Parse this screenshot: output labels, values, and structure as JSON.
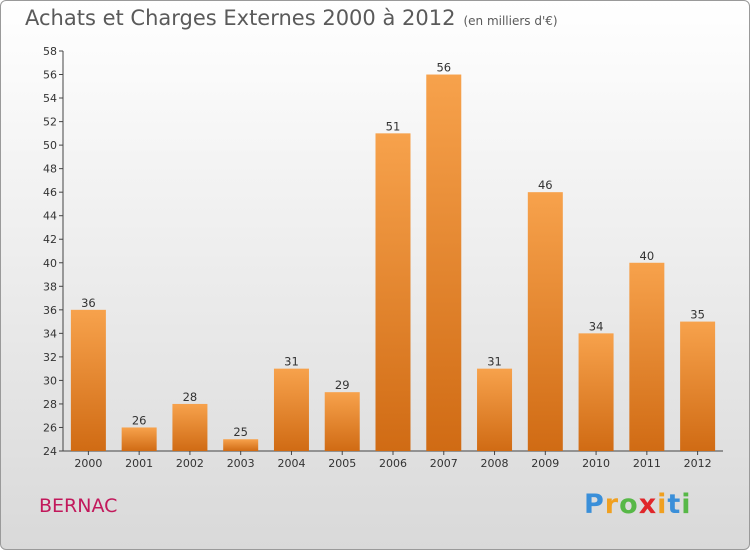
{
  "header": {
    "title": "Achats et Charges Externes 2000 à 2012",
    "unit": "(en milliers d'€)"
  },
  "footer": {
    "commune": "BERNAC",
    "logo_letters": [
      "P",
      "r",
      "o",
      "x",
      "i",
      "t",
      "i"
    ],
    "logo_colors": [
      "#3a8fd9",
      "#f0a020",
      "#57b847",
      "#e0262a",
      "#f0a020",
      "#3a8fd9",
      "#57b847"
    ]
  },
  "colors": {
    "bar_top": "#f7a24c",
    "bar_bottom": "#d06b14",
    "axis": "#444444",
    "grid": "#d0d0d0"
  },
  "chart_data": {
    "type": "bar",
    "title": "Achats et Charges Externes 2000 à 2012",
    "xlabel": "",
    "ylabel": "",
    "categories": [
      "2000",
      "2001",
      "2002",
      "2003",
      "2004",
      "2005",
      "2006",
      "2007",
      "2008",
      "2009",
      "2010",
      "2011",
      "2012"
    ],
    "values": [
      36,
      26,
      28,
      25,
      31,
      29,
      51,
      56,
      31,
      46,
      34,
      40,
      35
    ],
    "ylim": [
      24,
      58
    ],
    "yticks": [
      24,
      26,
      28,
      30,
      32,
      34,
      36,
      38,
      40,
      42,
      44,
      46,
      48,
      50,
      52,
      54,
      56,
      58
    ],
    "grid": false,
    "legend": "none"
  }
}
